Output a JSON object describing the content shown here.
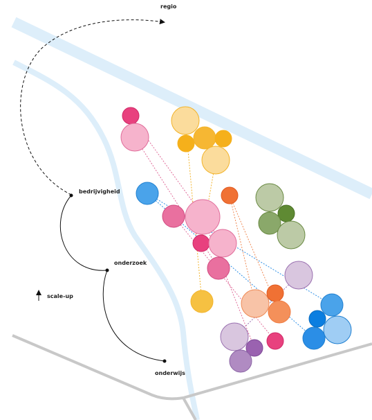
{
  "labels": {
    "regio": "regio",
    "bedrijvigheid": "bedrijvigheid",
    "onderzoek": "onderzoek",
    "onderwijs": "onderwijs",
    "scale_up": "scale-up"
  }
}
